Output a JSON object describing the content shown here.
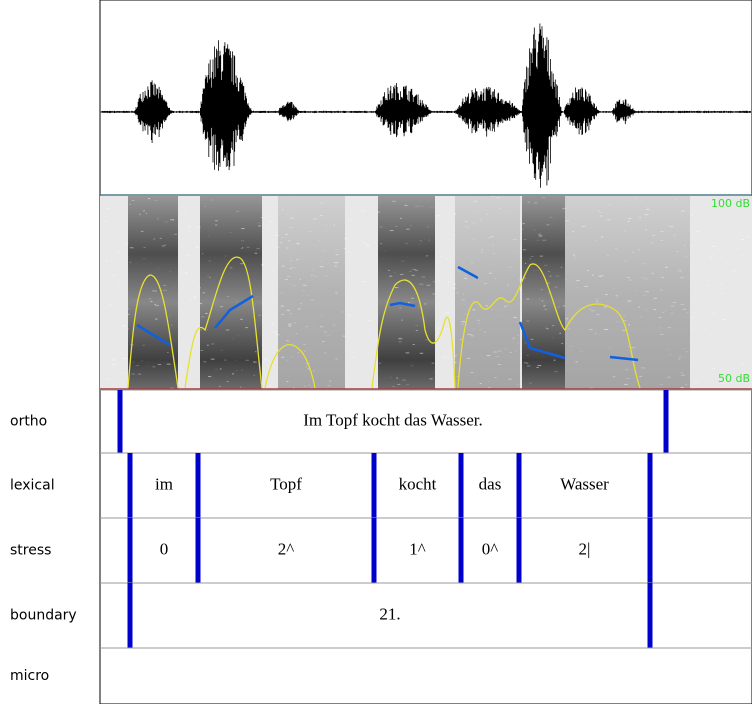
{
  "spectrogram": {
    "max_label": "100 dB",
    "min_label": "50 dB"
  },
  "tiers": [
    {
      "name": "ortho",
      "intervals": [
        "Im Topf kocht das Wasser."
      ]
    },
    {
      "name": "lexical",
      "intervals": [
        "im",
        "Topf",
        "kocht",
        "das",
        "Wasser"
      ]
    },
    {
      "name": "stress",
      "intervals": [
        "0",
        "2^",
        "1^",
        "0^",
        "2|"
      ]
    },
    {
      "name": "boundary",
      "intervals": [
        "21."
      ]
    },
    {
      "name": "micro",
      "intervals": []
    }
  ]
}
